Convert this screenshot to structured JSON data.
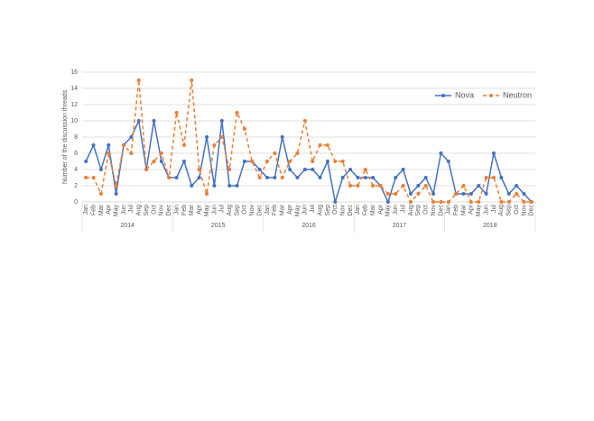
{
  "chart_data": {
    "type": "line",
    "y_label": "Number of the discussion threads",
    "categories": [
      "Jan",
      "Feb",
      "Mar",
      "Apr",
      "May",
      "Jun",
      "Jul",
      "Aug",
      "Sep",
      "Oct",
      "Nov",
      "Dec",
      "Jan",
      "Feb",
      "Mar",
      "Apr",
      "May",
      "Jun",
      "Jul",
      "Aug",
      "Sep",
      "Oct",
      "Nov",
      "Dec",
      "Jan",
      "Feb",
      "Mar",
      "Apr",
      "May",
      "Jun",
      "Jul",
      "Aug",
      "Sep",
      "Oct",
      "Nov",
      "Dec",
      "Jan",
      "Feb",
      "Mar",
      "Apr",
      "May",
      "Jun",
      "Jul",
      "Aug",
      "Sep",
      "Oct",
      "Nov",
      "Dec",
      "Jan",
      "Feb",
      "Mar",
      "Apr",
      "May",
      "Jun",
      "Jul",
      "Aug",
      "Sep",
      "Oct",
      "Nov",
      "Dec"
    ],
    "years": [
      "2014",
      "2015",
      "2016",
      "2017",
      "2018"
    ],
    "series": [
      {
        "name": "Nova",
        "color": "#4472c4",
        "dashed": false,
        "values": [
          5,
          7,
          4,
          7,
          1,
          7,
          8,
          10,
          4,
          10,
          5,
          3,
          3,
          5,
          2,
          3,
          8,
          2,
          10,
          2,
          2,
          5,
          5,
          4,
          3,
          3,
          8,
          4,
          3,
          4,
          4,
          3,
          5,
          0,
          3,
          4,
          3,
          3,
          3,
          2,
          0,
          3,
          4,
          1,
          2,
          3,
          1,
          6,
          5,
          1,
          1,
          1,
          2,
          1,
          6,
          3,
          1,
          2,
          1,
          0
        ]
      },
      {
        "name": "Neutron",
        "color": "#ed7d31",
        "dashed": true,
        "values": [
          3,
          3,
          1,
          6,
          2,
          7,
          6,
          15,
          4,
          5,
          6,
          3,
          11,
          7,
          15,
          4,
          1,
          7,
          8,
          4,
          11,
          9,
          5,
          3,
          5,
          6,
          3,
          5,
          6,
          10,
          5,
          7,
          7,
          5,
          5,
          2,
          2,
          4,
          2,
          2,
          1,
          1,
          2,
          0,
          1,
          2,
          0,
          0,
          0,
          1,
          2,
          0,
          0,
          3,
          3,
          0,
          0,
          1,
          0,
          0
        ]
      }
    ],
    "ylim": [
      0,
      16
    ],
    "yticks": [
      0,
      2,
      4,
      6,
      8,
      10,
      12,
      14,
      16
    ],
    "grid": true,
    "legend": "top-right"
  }
}
